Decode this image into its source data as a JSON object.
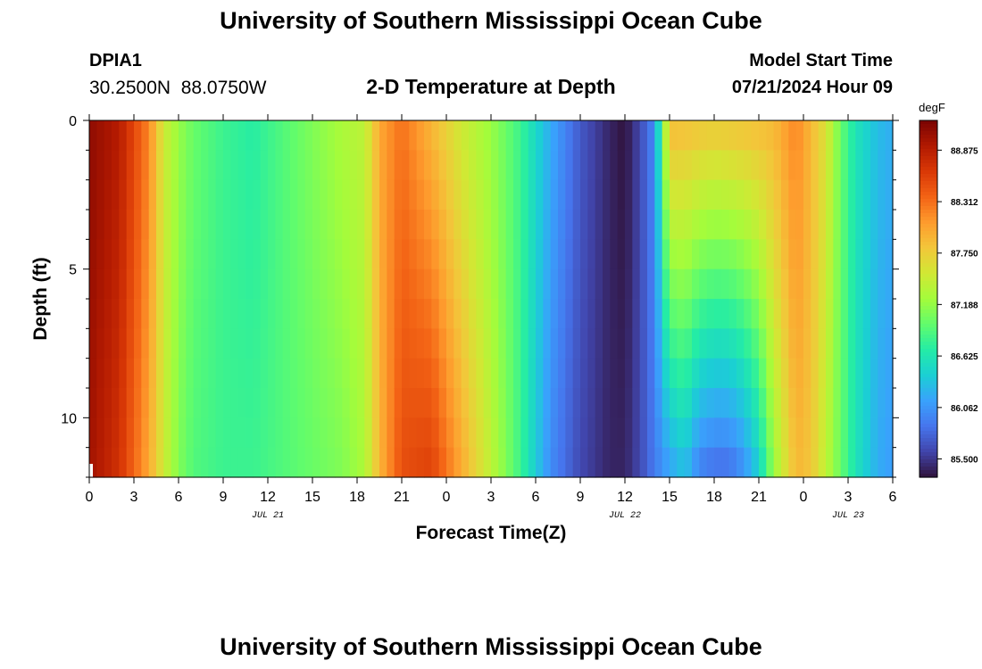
{
  "header": {
    "title": "University of Southern Mississippi Ocean Cube",
    "station_id": "DPIA1",
    "coordinates": "30.2500N  88.0750W",
    "plot_title": "2-D Temperature at Depth",
    "model_start_label": "Model Start Time",
    "model_start_value": "07/21/2024 Hour 09"
  },
  "footer": {
    "title": "University of Southern Mississippi Ocean Cube"
  },
  "chart_data": {
    "type": "heatmap",
    "title": "2-D Temperature at Depth",
    "xlabel": "Forecast Time(Z)",
    "ylabel": "Depth (ft)",
    "x_range_hours": [
      0,
      54
    ],
    "x_tick_labels": [
      "0",
      "3",
      "6",
      "9",
      "12",
      "15",
      "18",
      "21",
      "0",
      "3",
      "6",
      "9",
      "12",
      "15",
      "18",
      "21",
      "0",
      "3",
      "6"
    ],
    "date_labels": [
      {
        "text": "JUL 21",
        "hour": 12
      },
      {
        "text": "JUL 22",
        "hour": 36
      },
      {
        "text": "JUL 23",
        "hour": 51
      }
    ],
    "y_range": [
      0,
      12
    ],
    "y_inverted": true,
    "y_ticks": [
      0,
      5,
      10
    ],
    "colorbar": {
      "unit": "degF",
      "min": 85.3,
      "max": 89.2,
      "ticks": [
        "88.875",
        "88.312",
        "87.750",
        "87.188",
        "86.625",
        "86.062",
        "85.500"
      ],
      "colormap": [
        "#30123b",
        "#4145ab",
        "#4675ed",
        "#39a2fc",
        "#1bcfd4",
        "#24eca6",
        "#61fc6c",
        "#a4fc3b",
        "#d1e834",
        "#f3c63a",
        "#fe9b2d",
        "#f36315",
        "#d93806",
        "#b11901",
        "#7a0402"
      ]
    },
    "depth_levels": [
      0,
      1,
      2,
      3,
      4,
      5,
      6,
      7,
      8,
      9,
      10,
      11,
      12
    ],
    "surface_profile": [
      {
        "hour": 0,
        "t": 89.1
      },
      {
        "hour": 2,
        "t": 88.9
      },
      {
        "hour": 4,
        "t": 88.2
      },
      {
        "hour": 5,
        "t": 87.5
      },
      {
        "hour": 6,
        "t": 87.2
      },
      {
        "hour": 7,
        "t": 87.0
      },
      {
        "hour": 9,
        "t": 86.8
      },
      {
        "hour": 11,
        "t": 86.7
      },
      {
        "hour": 13,
        "t": 86.9
      },
      {
        "hour": 15,
        "t": 87.1
      },
      {
        "hour": 17,
        "t": 87.3
      },
      {
        "hour": 18.5,
        "t": 87.4
      },
      {
        "hour": 19.5,
        "t": 88.0
      },
      {
        "hour": 21,
        "t": 88.3
      },
      {
        "hour": 23,
        "t": 87.9
      },
      {
        "hour": 25,
        "t": 87.5
      },
      {
        "hour": 27,
        "t": 87.2
      },
      {
        "hour": 29,
        "t": 86.8
      },
      {
        "hour": 31,
        "t": 86.2
      },
      {
        "hour": 33,
        "t": 85.7
      },
      {
        "hour": 35,
        "t": 85.4
      },
      {
        "hour": 36,
        "t": 85.3
      },
      {
        "hour": 37,
        "t": 85.6
      },
      {
        "hour": 38,
        "t": 86.0
      },
      {
        "hour": 38.5,
        "t": 87.0
      },
      {
        "hour": 39,
        "t": 87.9
      },
      {
        "hour": 42,
        "t": 87.8
      },
      {
        "hour": 46,
        "t": 87.9
      },
      {
        "hour": 47.5,
        "t": 88.2
      },
      {
        "hour": 48.5,
        "t": 87.9
      },
      {
        "hour": 49.5,
        "t": 87.6
      },
      {
        "hour": 50.5,
        "t": 87.0
      },
      {
        "hour": 51.5,
        "t": 86.6
      },
      {
        "hour": 53,
        "t": 86.3
      },
      {
        "hour": 54,
        "t": 86.2
      }
    ],
    "bottom_profile": [
      {
        "hour": 0,
        "t": 89.0
      },
      {
        "hour": 2,
        "t": 88.7
      },
      {
        "hour": 4,
        "t": 88.0
      },
      {
        "hour": 5,
        "t": 87.5
      },
      {
        "hour": 6,
        "t": 87.1
      },
      {
        "hour": 7,
        "t": 86.9
      },
      {
        "hour": 9,
        "t": 86.8
      },
      {
        "hour": 11,
        "t": 86.8
      },
      {
        "hour": 13,
        "t": 86.9
      },
      {
        "hour": 15,
        "t": 87.0
      },
      {
        "hour": 17,
        "t": 87.1
      },
      {
        "hour": 18.5,
        "t": 87.3
      },
      {
        "hour": 19.5,
        "t": 87.9
      },
      {
        "hour": 21,
        "t": 88.5
      },
      {
        "hour": 23,
        "t": 88.6
      },
      {
        "hour": 25,
        "t": 88.0
      },
      {
        "hour": 27,
        "t": 87.4
      },
      {
        "hour": 29,
        "t": 86.8
      },
      {
        "hour": 31,
        "t": 86.0
      },
      {
        "hour": 33,
        "t": 85.6
      },
      {
        "hour": 35,
        "t": 85.4
      },
      {
        "hour": 36,
        "t": 85.4
      },
      {
        "hour": 37,
        "t": 85.6
      },
      {
        "hour": 38,
        "t": 85.9
      },
      {
        "hour": 39,
        "t": 86.1
      },
      {
        "hour": 40,
        "t": 86.3
      },
      {
        "hour": 41,
        "t": 85.9
      },
      {
        "hour": 42,
        "t": 85.8
      },
      {
        "hour": 43,
        "t": 85.8
      },
      {
        "hour": 44,
        "t": 86.0
      },
      {
        "hour": 45,
        "t": 86.4
      },
      {
        "hour": 46,
        "t": 87.2
      },
      {
        "hour": 47.5,
        "t": 87.9
      },
      {
        "hour": 48.5,
        "t": 87.8
      },
      {
        "hour": 49.5,
        "t": 87.4
      },
      {
        "hour": 50.5,
        "t": 87.0
      },
      {
        "hour": 51.5,
        "t": 86.6
      },
      {
        "hour": 53,
        "t": 86.2
      },
      {
        "hour": 54,
        "t": 86.1
      }
    ]
  }
}
